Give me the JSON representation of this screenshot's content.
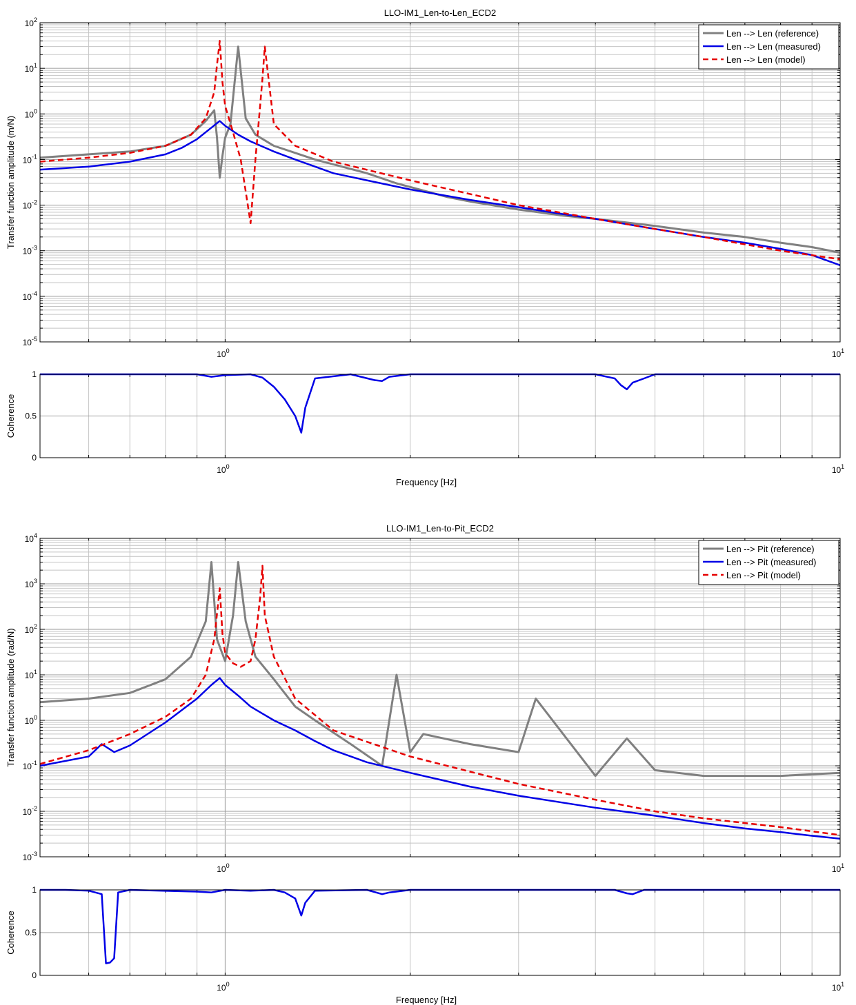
{
  "chart_data": [
    {
      "type": "line",
      "title": "LLO-IM1_Len-to-Len_ECD2",
      "xlabel": "",
      "ylabel": "Transfer function amplitude (m/N)",
      "x_scale": "log",
      "y_scale": "log",
      "xlim": [
        0.5,
        10
      ],
      "ylim": [
        1e-05,
        100
      ],
      "x_ticks": [
        {
          "value": 1,
          "base": "10",
          "exp": "0"
        },
        {
          "value": 10,
          "base": "10",
          "exp": "1"
        }
      ],
      "y_ticks": [
        {
          "value": 1e-05,
          "base": "10",
          "exp": "-5"
        },
        {
          "value": 0.0001,
          "base": "10",
          "exp": "-4"
        },
        {
          "value": 0.001,
          "base": "10",
          "exp": "-3"
        },
        {
          "value": 0.01,
          "base": "10",
          "exp": "-2"
        },
        {
          "value": 0.1,
          "base": "10",
          "exp": "-1"
        },
        {
          "value": 1,
          "base": "10",
          "exp": "0"
        },
        {
          "value": 10,
          "base": "10",
          "exp": "1"
        },
        {
          "value": 100,
          "base": "10",
          "exp": "2"
        }
      ],
      "grid": true,
      "legend_position": "top-right",
      "series": [
        {
          "name": "Len --> Len (reference)",
          "color": "#808080",
          "style": "solid",
          "x": [
            0.5,
            0.6,
            0.7,
            0.8,
            0.88,
            0.93,
            0.96,
            0.97,
            0.98,
            0.99,
            1.0,
            1.02,
            1.05,
            1.08,
            1.12,
            1.2,
            1.4,
            1.7,
            1.9,
            2.0,
            2.3,
            2.5,
            3.0,
            3.5,
            4.0,
            5.0,
            6.0,
            7.0,
            8.0,
            9.0,
            10.0
          ],
          "y": [
            0.11,
            0.13,
            0.15,
            0.2,
            0.35,
            0.7,
            1.2,
            0.3,
            0.04,
            0.12,
            0.3,
            0.6,
            30,
            0.8,
            0.35,
            0.2,
            0.1,
            0.05,
            0.03,
            0.025,
            0.015,
            0.012,
            0.008,
            0.006,
            0.005,
            0.0035,
            0.0025,
            0.002,
            0.0015,
            0.0012,
            0.0009
          ]
        },
        {
          "name": "Len --> Len (measured)",
          "color": "#0000e6",
          "style": "solid",
          "x": [
            0.5,
            0.6,
            0.7,
            0.8,
            0.85,
            0.9,
            0.95,
            0.98,
            1.0,
            1.05,
            1.1,
            1.2,
            1.3,
            1.4,
            1.5,
            1.7,
            2.0,
            2.5,
            3.0,
            3.5,
            4.0,
            5.0,
            6.0,
            7.0,
            8.0,
            9.0,
            10.0
          ],
          "y": [
            0.06,
            0.07,
            0.09,
            0.13,
            0.18,
            0.28,
            0.5,
            0.7,
            0.55,
            0.35,
            0.25,
            0.15,
            0.1,
            0.07,
            0.05,
            0.035,
            0.022,
            0.013,
            0.009,
            0.0065,
            0.005,
            0.003,
            0.002,
            0.0015,
            0.0011,
            0.0008,
            0.00048
          ]
        },
        {
          "name": "Len --> Len (model)",
          "color": "#e60000",
          "style": "dashed",
          "x": [
            0.5,
            0.6,
            0.7,
            0.8,
            0.88,
            0.93,
            0.96,
            0.97,
            0.98,
            0.99,
            1.0,
            1.03,
            1.06,
            1.08,
            1.1,
            1.12,
            1.14,
            1.15,
            1.16,
            1.2,
            1.3,
            1.5,
            2.0,
            3.0,
            4.0,
            5.0,
            6.0,
            8.0,
            10.0
          ],
          "y": [
            0.09,
            0.11,
            0.14,
            0.2,
            0.35,
            0.8,
            3,
            12,
            40,
            5,
            1.5,
            0.4,
            0.1,
            0.02,
            0.004,
            0.1,
            1.5,
            6,
            30,
            0.6,
            0.2,
            0.09,
            0.035,
            0.01,
            0.005,
            0.003,
            0.002,
            0.001,
            0.00065
          ]
        }
      ]
    },
    {
      "type": "line",
      "title": "",
      "xlabel": "Frequency [Hz]",
      "ylabel": "Coherence",
      "x_scale": "log",
      "y_scale": "linear",
      "xlim": [
        0.5,
        10
      ],
      "ylim": [
        0,
        1
      ],
      "x_ticks": [
        {
          "value": 1,
          "base": "10",
          "exp": "0"
        },
        {
          "value": 10,
          "base": "10",
          "exp": "1"
        }
      ],
      "y_ticks": [
        {
          "value": 0,
          "label": "0"
        },
        {
          "value": 0.5,
          "label": "0.5"
        },
        {
          "value": 1,
          "label": "1"
        }
      ],
      "grid": true,
      "series": [
        {
          "name": "",
          "color": "#0000e6",
          "style": "solid",
          "x": [
            0.5,
            0.7,
            0.9,
            0.95,
            1.0,
            1.1,
            1.15,
            1.2,
            1.25,
            1.3,
            1.33,
            1.35,
            1.4,
            1.6,
            1.75,
            1.8,
            1.85,
            2.0,
            2.5,
            3.0,
            4.0,
            4.3,
            4.4,
            4.5,
            4.6,
            4.8,
            5.0,
            6.0,
            8.0,
            10.0
          ],
          "y": [
            1,
            1,
            1,
            0.97,
            0.99,
            1,
            0.96,
            0.85,
            0.7,
            0.5,
            0.3,
            0.6,
            0.95,
            1,
            0.93,
            0.92,
            0.97,
            1,
            1,
            1,
            1,
            0.95,
            0.87,
            0.82,
            0.9,
            0.95,
            1,
            1,
            1,
            1
          ]
        }
      ]
    },
    {
      "type": "line",
      "title": "LLO-IM1_Len-to-Pit_ECD2",
      "xlabel": "",
      "ylabel": "Transfer function amplitude (rad/N)",
      "x_scale": "log",
      "y_scale": "log",
      "xlim": [
        0.5,
        10
      ],
      "ylim": [
        0.001,
        10000
      ],
      "x_ticks": [
        {
          "value": 1,
          "base": "10",
          "exp": "0"
        },
        {
          "value": 10,
          "base": "10",
          "exp": "1"
        }
      ],
      "y_ticks": [
        {
          "value": 0.001,
          "base": "10",
          "exp": "-3"
        },
        {
          "value": 0.01,
          "base": "10",
          "exp": "-2"
        },
        {
          "value": 0.1,
          "base": "10",
          "exp": "-1"
        },
        {
          "value": 1,
          "base": "10",
          "exp": "0"
        },
        {
          "value": 10,
          "base": "10",
          "exp": "1"
        },
        {
          "value": 100,
          "base": "10",
          "exp": "2"
        },
        {
          "value": 1000,
          "base": "10",
          "exp": "3"
        },
        {
          "value": 10000,
          "base": "10",
          "exp": "4"
        }
      ],
      "grid": true,
      "legend_position": "top-right",
      "series": [
        {
          "name": "Len --> Pit (reference)",
          "color": "#808080",
          "style": "solid",
          "x": [
            0.5,
            0.6,
            0.7,
            0.8,
            0.88,
            0.93,
            0.95,
            0.97,
            1.0,
            1.03,
            1.05,
            1.08,
            1.12,
            1.2,
            1.3,
            1.4,
            1.6,
            1.8,
            1.9,
            2.0,
            2.1,
            2.5,
            3.0,
            3.2,
            4.0,
            4.5,
            5.0,
            6.0,
            7.0,
            8.0,
            10.0
          ],
          "y": [
            2.5,
            3,
            4,
            8,
            25,
            150,
            3000,
            60,
            20,
            200,
            3000,
            150,
            25,
            8,
            2,
            1,
            0.3,
            0.1,
            10,
            0.2,
            0.5,
            0.3,
            0.2,
            3,
            0.06,
            0.4,
            0.08,
            0.06,
            0.06,
            0.06,
            0.07
          ]
        },
        {
          "name": "Len --> Pit (measured)",
          "color": "#0000e6",
          "style": "solid",
          "x": [
            0.5,
            0.6,
            0.63,
            0.66,
            0.7,
            0.8,
            0.9,
            0.95,
            0.98,
            1.0,
            1.05,
            1.1,
            1.2,
            1.3,
            1.4,
            1.5,
            1.7,
            2.0,
            2.5,
            3.0,
            4.0,
            5.0,
            6.0,
            7.0,
            8.0,
            9.0,
            10.0
          ],
          "y": [
            0.1,
            0.16,
            0.3,
            0.2,
            0.28,
            0.9,
            3,
            6,
            8.5,
            6,
            3.5,
            2,
            1,
            0.6,
            0.35,
            0.22,
            0.12,
            0.07,
            0.035,
            0.022,
            0.012,
            0.008,
            0.0055,
            0.0042,
            0.0035,
            0.0029,
            0.0025
          ]
        },
        {
          "name": "Len --> Pit (model)",
          "color": "#e60000",
          "style": "dashed",
          "x": [
            0.5,
            0.6,
            0.7,
            0.8,
            0.88,
            0.93,
            0.96,
            0.98,
            0.99,
            1.0,
            1.03,
            1.06,
            1.1,
            1.12,
            1.14,
            1.15,
            1.16,
            1.2,
            1.3,
            1.5,
            2.0,
            3.0,
            4.0,
            5.0,
            6.0,
            8.0,
            10.0
          ],
          "y": [
            0.11,
            0.22,
            0.5,
            1.2,
            3,
            10,
            60,
            800,
            80,
            30,
            18,
            15,
            20,
            60,
            500,
            2500,
            200,
            25,
            3,
            0.6,
            0.16,
            0.04,
            0.018,
            0.01,
            0.007,
            0.0045,
            0.003
          ]
        }
      ]
    },
    {
      "type": "line",
      "title": "",
      "xlabel": "Frequency [Hz]",
      "ylabel": "Coherence",
      "x_scale": "log",
      "y_scale": "linear",
      "xlim": [
        0.5,
        10
      ],
      "ylim": [
        0,
        1
      ],
      "x_ticks": [
        {
          "value": 1,
          "base": "10",
          "exp": "0"
        },
        {
          "value": 10,
          "base": "10",
          "exp": "1"
        }
      ],
      "y_ticks": [
        {
          "value": 0,
          "label": "0"
        },
        {
          "value": 0.5,
          "label": "0.5"
        },
        {
          "value": 1,
          "label": "1"
        }
      ],
      "grid": true,
      "series": [
        {
          "name": "",
          "color": "#0000e6",
          "style": "solid",
          "x": [
            0.5,
            0.55,
            0.6,
            0.63,
            0.64,
            0.65,
            0.66,
            0.67,
            0.7,
            0.9,
            0.95,
            1.0,
            1.1,
            1.2,
            1.25,
            1.3,
            1.33,
            1.35,
            1.4,
            1.7,
            1.8,
            1.85,
            2.0,
            4.3,
            4.5,
            4.6,
            4.8,
            10.0
          ],
          "y": [
            1,
            1,
            0.99,
            0.95,
            0.14,
            0.15,
            0.2,
            0.97,
            1,
            0.98,
            0.97,
            1,
            0.99,
            1,
            0.97,
            0.9,
            0.7,
            0.85,
            0.99,
            1,
            0.95,
            0.97,
            1,
            1,
            0.96,
            0.95,
            1,
            1
          ]
        }
      ]
    }
  ]
}
